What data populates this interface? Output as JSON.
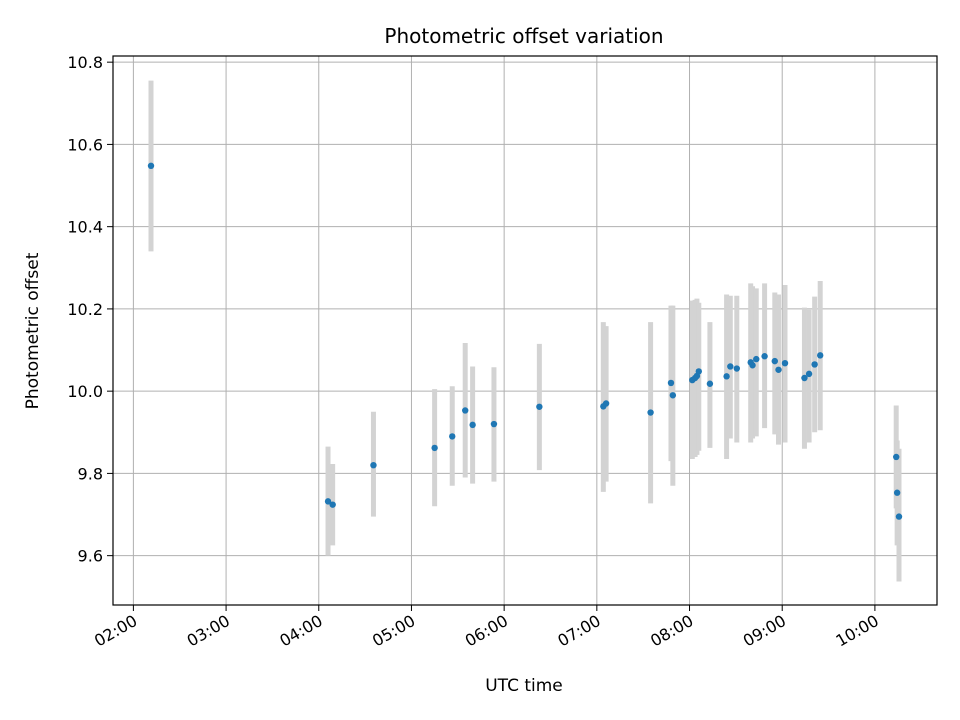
{
  "chart_data": {
    "type": "scatter",
    "title": "Photometric offset variation",
    "xlabel": "UTC time",
    "ylabel": "Photometric offset",
    "xlim": [
      1.78,
      10.67
    ],
    "ylim": [
      9.48,
      10.815
    ],
    "grid": true,
    "x_ticks": [
      2,
      3,
      4,
      5,
      6,
      7,
      8,
      9,
      10
    ],
    "x_tick_labels": [
      "02:00",
      "03:00",
      "04:00",
      "05:00",
      "06:00",
      "07:00",
      "08:00",
      "09:00",
      "10:00"
    ],
    "y_ticks": [
      9.6,
      9.8,
      10.0,
      10.2,
      10.4,
      10.6,
      10.8
    ],
    "y_tick_labels": [
      "9.6",
      "9.8",
      "10.0",
      "10.2",
      "10.4",
      "10.6",
      "10.8"
    ],
    "colors": {
      "point": "#1f77b4",
      "errorbar": "#d3d3d3",
      "grid": "#b0b0b0",
      "axis": "#000000"
    },
    "series": [
      {
        "name": "Photometric offset",
        "points": [
          {
            "x": 2.19,
            "y": 10.548,
            "lo": 10.34,
            "hi": 10.755
          },
          {
            "x": 4.1,
            "y": 9.732,
            "lo": 9.6,
            "hi": 9.865
          },
          {
            "x": 4.15,
            "y": 9.724,
            "lo": 9.625,
            "hi": 9.823
          },
          {
            "x": 4.59,
            "y": 9.82,
            "lo": 9.695,
            "hi": 9.95
          },
          {
            "x": 5.25,
            "y": 9.862,
            "lo": 9.72,
            "hi": 10.005
          },
          {
            "x": 5.44,
            "y": 9.89,
            "lo": 9.77,
            "hi": 10.012
          },
          {
            "x": 5.58,
            "y": 9.953,
            "lo": 9.79,
            "hi": 10.117
          },
          {
            "x": 5.66,
            "y": 9.918,
            "lo": 9.775,
            "hi": 10.06
          },
          {
            "x": 5.89,
            "y": 9.92,
            "lo": 9.78,
            "hi": 10.058
          },
          {
            "x": 6.38,
            "y": 9.962,
            "lo": 9.808,
            "hi": 10.115
          },
          {
            "x": 7.07,
            "y": 9.963,
            "lo": 9.755,
            "hi": 10.168
          },
          {
            "x": 7.1,
            "y": 9.97,
            "lo": 9.78,
            "hi": 10.158
          },
          {
            "x": 7.58,
            "y": 9.948,
            "lo": 9.727,
            "hi": 10.168
          },
          {
            "x": 7.8,
            "y": 10.02,
            "lo": 9.83,
            "hi": 10.208
          },
          {
            "x": 7.82,
            "y": 9.99,
            "lo": 9.77,
            "hi": 10.208
          },
          {
            "x": 8.03,
            "y": 10.027,
            "lo": 9.835,
            "hi": 10.22
          },
          {
            "x": 8.06,
            "y": 10.032,
            "lo": 9.84,
            "hi": 10.222
          },
          {
            "x": 8.08,
            "y": 10.037,
            "lo": 9.845,
            "hi": 10.225
          },
          {
            "x": 8.1,
            "y": 10.048,
            "lo": 9.855,
            "hi": 10.215
          },
          {
            "x": 8.22,
            "y": 10.018,
            "lo": 9.862,
            "hi": 10.168
          },
          {
            "x": 8.4,
            "y": 10.036,
            "lo": 9.835,
            "hi": 10.235
          },
          {
            "x": 8.44,
            "y": 10.06,
            "lo": 9.885,
            "hi": 10.232
          },
          {
            "x": 8.51,
            "y": 10.055,
            "lo": 9.875,
            "hi": 10.232
          },
          {
            "x": 8.66,
            "y": 10.07,
            "lo": 9.875,
            "hi": 10.262
          },
          {
            "x": 8.68,
            "y": 10.063,
            "lo": 9.885,
            "hi": 10.255
          },
          {
            "x": 8.72,
            "y": 10.078,
            "lo": 9.89,
            "hi": 10.25
          },
          {
            "x": 8.81,
            "y": 10.085,
            "lo": 9.91,
            "hi": 10.262
          },
          {
            "x": 8.92,
            "y": 10.073,
            "lo": 9.895,
            "hi": 10.24
          },
          {
            "x": 8.96,
            "y": 10.052,
            "lo": 9.87,
            "hi": 10.235
          },
          {
            "x": 9.03,
            "y": 10.068,
            "lo": 9.875,
            "hi": 10.258
          },
          {
            "x": 9.24,
            "y": 10.032,
            "lo": 9.86,
            "hi": 10.203
          },
          {
            "x": 9.29,
            "y": 10.042,
            "lo": 9.875,
            "hi": 10.198
          },
          {
            "x": 9.35,
            "y": 10.065,
            "lo": 9.9,
            "hi": 10.23
          },
          {
            "x": 9.41,
            "y": 10.087,
            "lo": 9.905,
            "hi": 10.268
          },
          {
            "x": 10.23,
            "y": 9.84,
            "lo": 9.715,
            "hi": 9.965
          },
          {
            "x": 10.24,
            "y": 9.753,
            "lo": 9.625,
            "hi": 9.88
          },
          {
            "x": 10.26,
            "y": 9.695,
            "lo": 9.537,
            "hi": 9.86
          }
        ]
      }
    ]
  }
}
